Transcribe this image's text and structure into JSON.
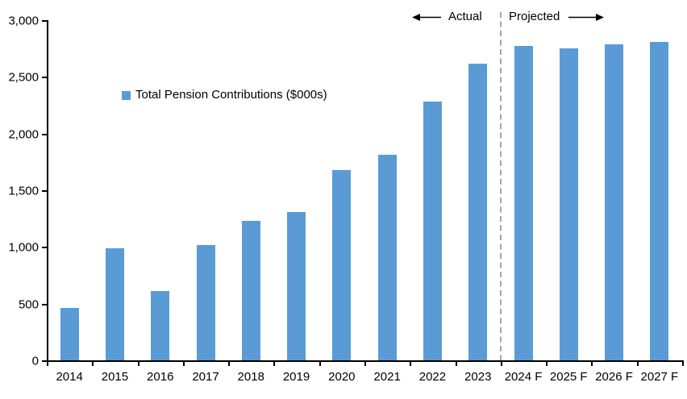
{
  "chart_data": {
    "type": "bar",
    "legend": "Total Pension Contributions ($000s)",
    "categories": [
      "2014",
      "2015",
      "2016",
      "2017",
      "2018",
      "2019",
      "2020",
      "2021",
      "2022",
      "2023",
      "2024 F",
      "2025 F",
      "2026 F",
      "2027 F"
    ],
    "values": [
      465,
      990,
      610,
      1020,
      1230,
      1310,
      1680,
      1815,
      2280,
      2620,
      2770,
      2755,
      2785,
      2810
    ],
    "ylim": [
      0,
      3000
    ],
    "ytick_step": 500,
    "ytick_labels": [
      "0",
      "500",
      "1,000",
      "1,500",
      "2,000",
      "2,500",
      "3,000"
    ],
    "grid": false,
    "legend_position": "inside-upper-left",
    "bar_color": "#5B9BD5",
    "axis_color": "#000000",
    "separator": {
      "boundary_index": 10,
      "after_category": "2023",
      "style": "dashed",
      "color": "#A6A6A6"
    },
    "annotations": {
      "actual_label": "Actual",
      "projected_label": "Projected"
    }
  }
}
